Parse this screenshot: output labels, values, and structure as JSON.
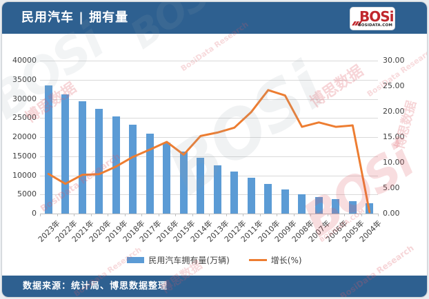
{
  "header": {
    "title": "民用汽车 | 拥有量"
  },
  "logo": {
    "brand": "BOSi",
    "site": "BOSIDATA.COM"
  },
  "footer": {
    "source_text": "数据来源：统计局、博思数据整理"
  },
  "watermark": {
    "cn": "博思数据",
    "en": "BosiData Research",
    "brand": "BOSi",
    "site": "BOSIDATA.COM"
  },
  "colors": {
    "header_blue": "#2e6090",
    "bar_blue": "#5b9bd5",
    "line_orange": "#ed7d31",
    "gridline": "#d9d9d9",
    "axis_text": "#404040",
    "logo_red": "#c0272d",
    "watermark_red": "#dd5a64",
    "watermark_gray": "#93a1ac"
  },
  "chart_data": {
    "type": "bar",
    "subtype": "combo-bar-line-dual-axis",
    "categories": [
      "2023年",
      "2022年",
      "2021年",
      "2020年",
      "2019年",
      "2018年",
      "2017年",
      "2016年",
      "2015年",
      "2014年",
      "2013年",
      "2012年",
      "2011年",
      "2010年",
      "2009年",
      "2008年",
      "2007年",
      "2006年",
      "2005年",
      "2004年"
    ],
    "series": [
      {
        "name": "民用汽车拥有量(万辆)",
        "type": "bar",
        "axis": "left",
        "color": "#5b9bd5",
        "values": [
          33556.21,
          31135.65,
          29418.59,
          27340.92,
          25376.38,
          23231.23,
          20906.67,
          18574.54,
          16284.45,
          14598.11,
          12670.14,
          10933.09,
          9356.32,
          7801.83,
          6280.61,
          5099.61,
          4358.36,
          3697.35,
          3159.66,
          2693.71
        ]
      },
      {
        "name": "增长(%)",
        "type": "line",
        "axis": "right",
        "color": "#ed7d31",
        "values": [
          7.78,
          5.84,
          7.6,
          7.74,
          9.23,
          11.12,
          12.56,
          14.06,
          11.55,
          15.22,
          15.89,
          16.85,
          19.92,
          24.22,
          23.16,
          17.01,
          17.88,
          17.02,
          17.3,
          0.3
        ]
      }
    ],
    "left_axis": {
      "min": 0,
      "max": 40000,
      "step": 5000,
      "ticks_top_to_bottom": [
        "40000",
        "35000",
        "30000",
        "25000",
        "20000",
        "15000",
        "10000",
        "5000",
        "0"
      ]
    },
    "right_axis": {
      "min": 0,
      "max": 30,
      "step": 5,
      "ticks_top_to_bottom": [
        "30.00",
        "25.00",
        "20.00",
        "15.00",
        "10.00",
        "5.00",
        "0.00"
      ]
    },
    "legend": [
      "民用汽车拥有量(万辆)",
      "增长(%)"
    ],
    "legend_position": "bottom",
    "grid": true,
    "title": "民用汽车 | 拥有量",
    "xlabel": "",
    "ylabel_left": "万辆",
    "ylabel_right": "%"
  }
}
